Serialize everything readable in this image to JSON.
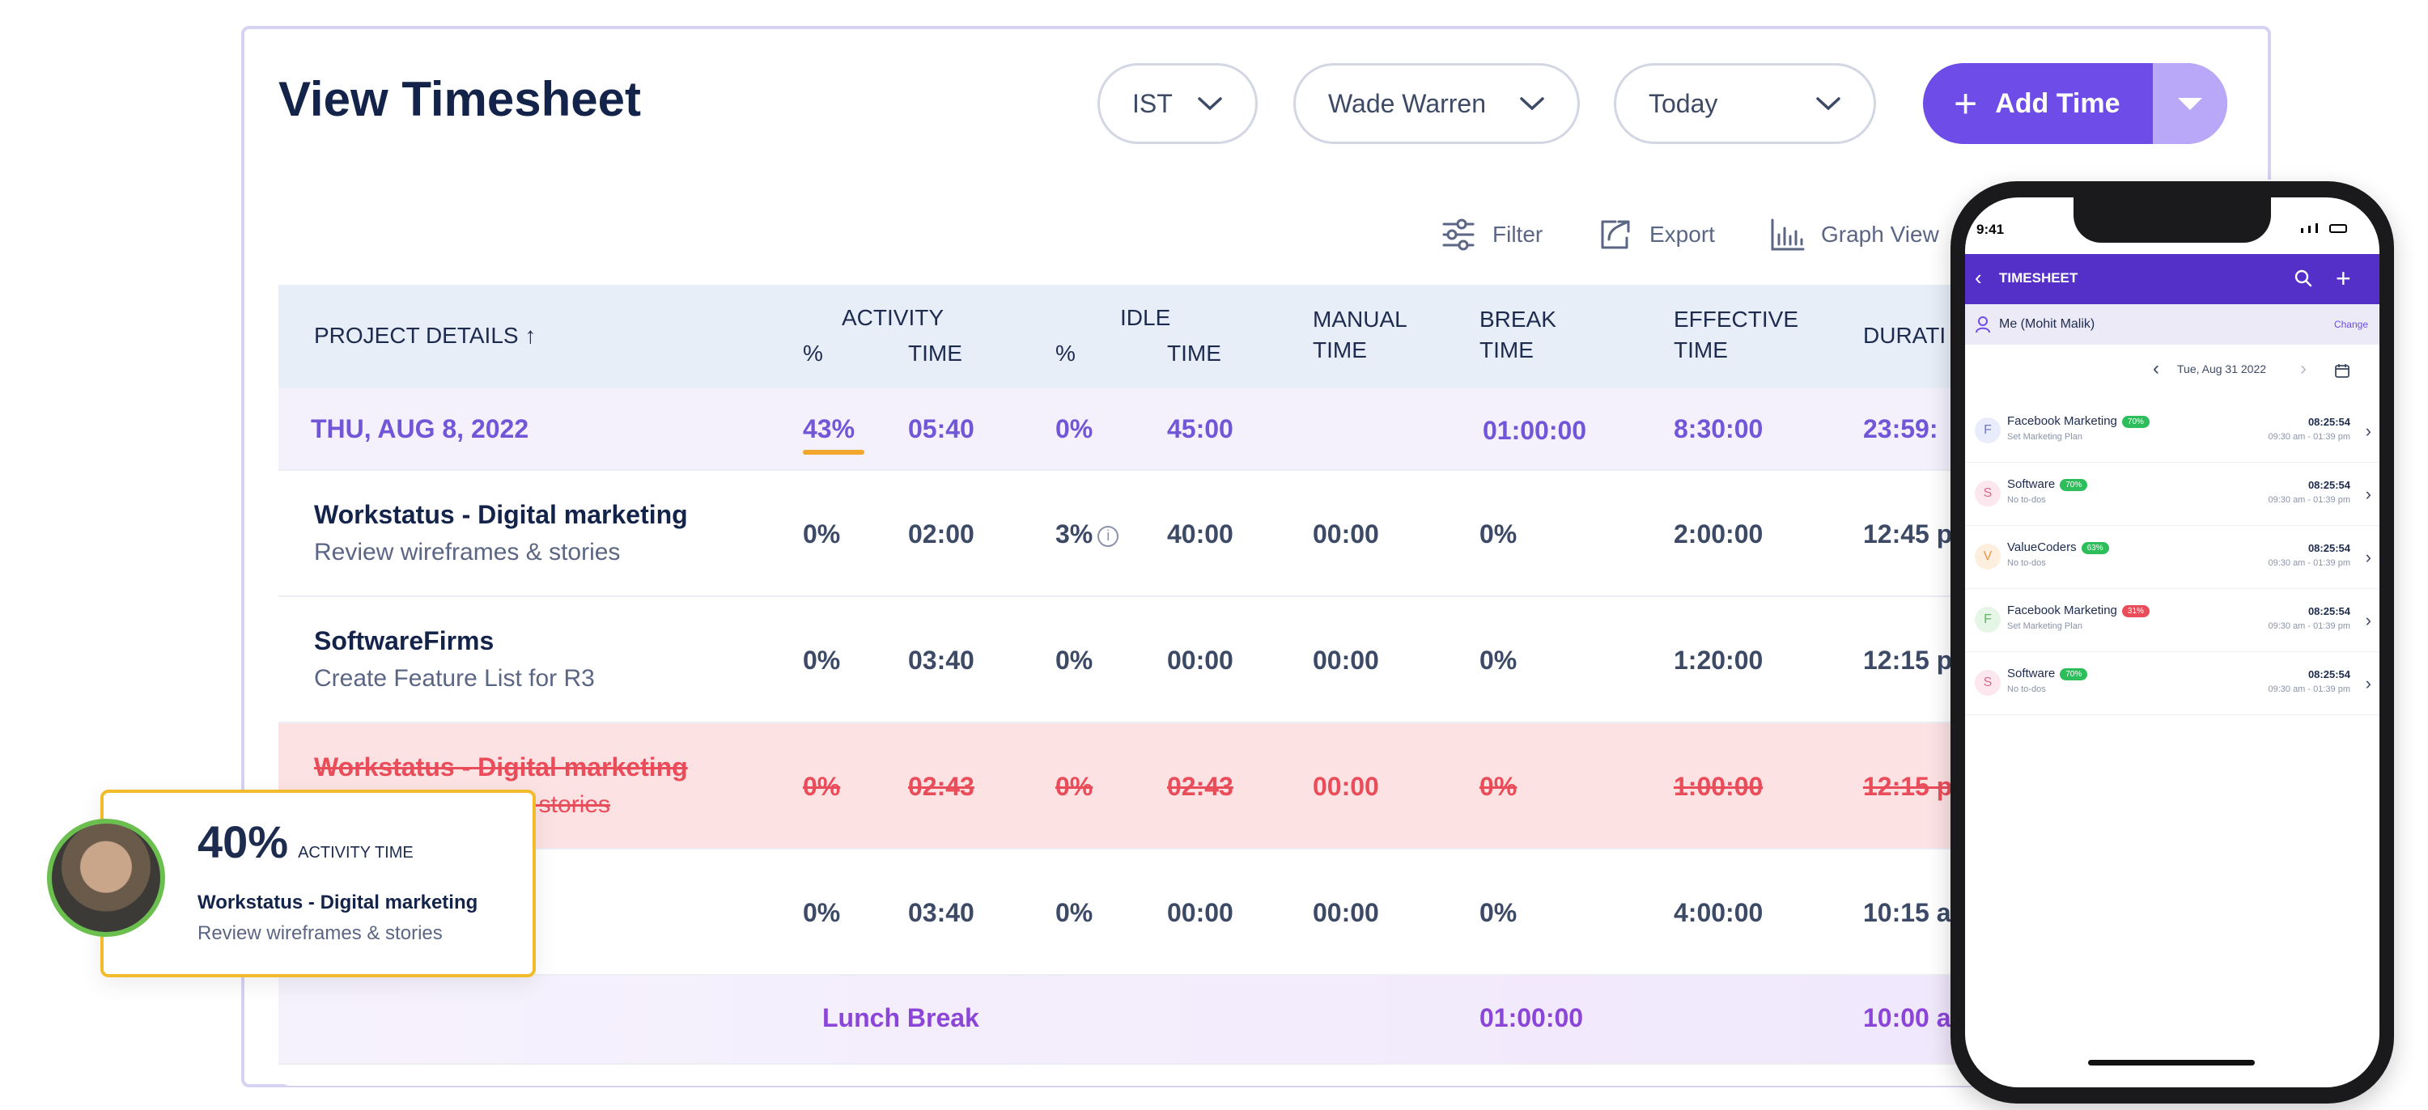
{
  "header": {
    "title": "View Timesheet",
    "timezone": "IST",
    "user": "Wade Warren",
    "range": "Today",
    "add_time_label": "Add Time"
  },
  "toolbar": {
    "filter": "Filter",
    "export": "Export",
    "graph_view": "Graph View"
  },
  "table": {
    "col_project": "PROJECT DETAILS ↑",
    "col_activity": "ACTIVITY",
    "col_idle": "IDLE",
    "sub_pct": "%",
    "sub_time": "TIME",
    "col_manual_1": "MANUAL",
    "col_manual_2": "TIME",
    "col_break_1": "BREAK",
    "col_break_2": "TIME",
    "col_effective_1": "EFFECTIVE",
    "col_effective_2": "TIME",
    "col_duration": "DURATI",
    "date_row": {
      "date": "THU, AUG 8, 2022",
      "act_pct": "43%",
      "act_time": "05:40",
      "idle_pct": "0%",
      "idle_time": "45:00",
      "break": "01:00:00",
      "effective": "8:30:00",
      "duration": "23:59:"
    },
    "rows": [
      {
        "name": "Workstatus - Digital marketing",
        "task": "Review wireframes & stories",
        "act_pct": "0%",
        "act_time": "02:00",
        "idle_pct": "3%",
        "idle_time": "40:00",
        "manual": "00:00",
        "break": "0%",
        "effective": "2:00:00",
        "duration": "12:45 p"
      },
      {
        "name": "SoftwareFirms",
        "task": "Create Feature List for R3",
        "act_pct": "0%",
        "act_time": "03:40",
        "idle_pct": "0%",
        "idle_time": "00:00",
        "manual": "00:00",
        "break": "0%",
        "effective": "1:20:00",
        "duration": "12:15 p"
      },
      {
        "name": "Workstatus - Digital marketing",
        "task": "s & stories",
        "act_pct": "0%",
        "act_time": "02:43",
        "idle_pct": "0%",
        "idle_time": "02:43",
        "manual": "00:00",
        "break": "0%",
        "effective": "1:00:00",
        "duration": "12:15 p"
      },
      {
        "name": "",
        "task": "",
        "act_pct": "0%",
        "act_time": "03:40",
        "idle_pct": "0%",
        "idle_time": "00:00",
        "manual": "00:00",
        "break": "0%",
        "effective": "4:00:00",
        "duration": "10:15 a"
      }
    ],
    "lunch": {
      "label": "Lunch Break",
      "break": "01:00:00",
      "duration": "10:00 a"
    }
  },
  "tooltip": {
    "percent": "40%",
    "label": "ACTIVITY TIME",
    "project": "Workstatus - Digital marketing",
    "task": "Review wireframes & stories"
  },
  "mobile": {
    "clock": "9:41",
    "title": "TIMESHEET",
    "user": "Me (Mohit Malik)",
    "change": "Change",
    "date": "Tue, Aug 31 2022",
    "items": [
      {
        "initial": "F",
        "name": "Facebook Marketing",
        "badge": "70%",
        "badge_color": "#2dbd5a",
        "sub": "Set Marketing Plan",
        "time": "08:25:54",
        "range": "09:30 am - 01:39 pm",
        "av_bg": "#e9ecfb",
        "av_fg": "#6b79c8"
      },
      {
        "initial": "S",
        "name": "Software",
        "badge": "70%",
        "badge_color": "#2dbd5a",
        "sub": "No to-dos",
        "time": "08:25:54",
        "range": "09:30 am - 01:39 pm",
        "av_bg": "#fde7ee",
        "av_fg": "#d86b8b"
      },
      {
        "initial": "V",
        "name": "ValueCoders",
        "badge": "63%",
        "badge_color": "#2dbd5a",
        "sub": "No to-dos",
        "time": "08:25:54",
        "range": "09:30 am - 01:39 pm",
        "av_bg": "#fdeedd",
        "av_fg": "#e29a4a"
      },
      {
        "initial": "F",
        "name": "Facebook Marketing",
        "badge": "31%",
        "badge_color": "#ea4d5a",
        "sub": "Set Marketing Plan",
        "time": "08:25:54",
        "range": "09:30 am - 01:39 pm",
        "av_bg": "#e6f6e6",
        "av_fg": "#5cb85c"
      },
      {
        "initial": "S",
        "name": "Software",
        "badge": "70%",
        "badge_color": "#2dbd5a",
        "sub": "No to-dos",
        "time": "08:25:54",
        "range": "09:30 am - 01:39 pm",
        "av_bg": "#fde7ee",
        "av_fg": "#d86b8b"
      }
    ]
  },
  "colors": {
    "accent": "#6d4ce8",
    "accent_light": "#b9a8f7",
    "danger_bg": "#fde2e4",
    "danger": "#ea4d5a",
    "highlight_border": "#f1bb2c"
  }
}
